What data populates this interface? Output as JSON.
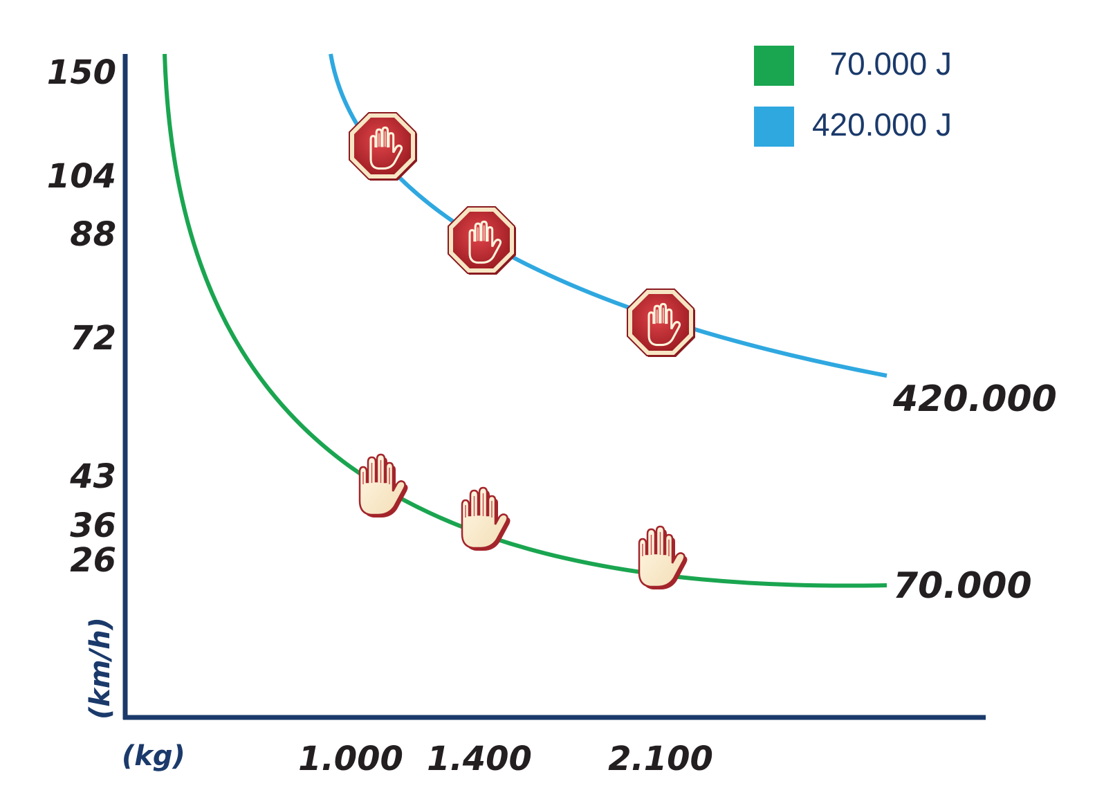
{
  "chart_data": {
    "type": "line",
    "xlabel": "(kg)",
    "ylabel": "(km/h)",
    "x_ticks": [
      "1.000",
      "1.400",
      "2.100"
    ],
    "y_ticks": [
      "150",
      "104",
      "88",
      "72",
      "43",
      "36",
      "26"
    ],
    "legend": {
      "position": "top-right"
    },
    "series": [
      {
        "name": "70.000 J",
        "end_label": "70.000",
        "color": "#1aa550",
        "marker_icon": "hand-icon",
        "points": [
          {
            "x": 1000,
            "y": 43
          },
          {
            "x": 1400,
            "y": 36
          },
          {
            "x": 2100,
            "y": 26
          }
        ]
      },
      {
        "name": "420.000 J",
        "end_label": "420.000",
        "color": "#2fa8e0",
        "marker_icon": "stop-hand-icon",
        "points": [
          {
            "x": 1000,
            "y": 104
          },
          {
            "x": 1400,
            "y": 88
          },
          {
            "x": 2100,
            "y": 72
          }
        ]
      }
    ]
  },
  "colors": {
    "axis": "#1b3a6b",
    "stop_sign": "#c0272d"
  }
}
